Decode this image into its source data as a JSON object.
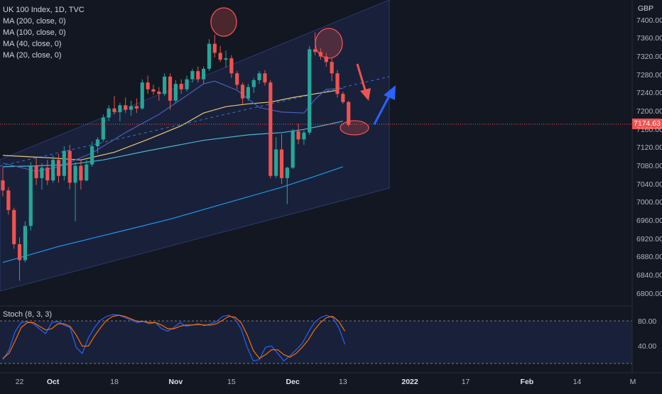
{
  "chart_data": [
    {
      "type": "candlestick",
      "instrument": "UK 100 Index, 1D, TVC",
      "currency": "GBP",
      "last_price": "7174.63",
      "y_ticks": [
        "7400.00",
        "7360.00",
        "7320.00",
        "7280.00",
        "7240.00",
        "7200.00",
        "7160.00",
        "7120.00",
        "7080.00",
        "7040.00",
        "7000.00",
        "6960.00",
        "6920.00",
        "6880.00",
        "6840.00",
        "6800.00"
      ],
      "ylim": [
        6790,
        7418
      ],
      "x_ticks": [
        {
          "label": "22",
          "index": 3
        },
        {
          "label": "Oct",
          "index": 9,
          "bold": true
        },
        {
          "label": "18",
          "index": 20
        },
        {
          "label": "Nov",
          "index": 31,
          "bold": true
        },
        {
          "label": "15",
          "index": 41
        },
        {
          "label": "Dec",
          "index": 52,
          "bold": true
        },
        {
          "label": "13",
          "index": 61
        },
        {
          "label": "2022",
          "index": 73,
          "bold": true
        },
        {
          "label": "17",
          "index": 83
        },
        {
          "label": "Feb",
          "index": 94,
          "bold": true
        },
        {
          "label": "14",
          "index": 103
        },
        {
          "label": "M",
          "index": 113
        }
      ],
      "candles": [
        [
          7050,
          7080,
          7015,
          7028
        ],
        [
          7028,
          7035,
          6975,
          6985
        ],
        [
          6985,
          6990,
          6900,
          6910
        ],
        [
          6910,
          6925,
          6830,
          6875
        ],
        [
          6875,
          6960,
          6870,
          6950
        ],
        [
          6950,
          7090,
          6940,
          7082
        ],
        [
          7082,
          7100,
          7040,
          7055
        ],
        [
          7055,
          7088,
          7030,
          7078
        ],
        [
          7078,
          7095,
          7040,
          7050
        ],
        [
          7050,
          7105,
          7045,
          7095
        ],
        [
          7095,
          7108,
          7045,
          7060
        ],
        [
          7060,
          7125,
          7050,
          7115
        ],
        [
          7115,
          7128,
          7030,
          7045
        ],
        [
          7045,
          7090,
          6960,
          7082
        ],
        [
          7082,
          7095,
          7030,
          7050
        ],
        [
          7050,
          7095,
          7048,
          7085
        ],
        [
          7085,
          7135,
          7080,
          7125
        ],
        [
          7125,
          7145,
          7110,
          7140
        ],
        [
          7140,
          7195,
          7135,
          7188
        ],
        [
          7188,
          7215,
          7180,
          7208
        ],
        [
          7208,
          7235,
          7195,
          7200
        ],
        [
          7200,
          7220,
          7180,
          7215
        ],
        [
          7215,
          7232,
          7198,
          7205
        ],
        [
          7205,
          7225,
          7192,
          7213
        ],
        [
          7213,
          7230,
          7198,
          7208
        ],
        [
          7208,
          7272,
          7205,
          7265
        ],
        [
          7265,
          7280,
          7240,
          7250
        ],
        [
          7250,
          7260,
          7238,
          7245
        ],
        [
          7245,
          7255,
          7225,
          7240
        ],
        [
          7240,
          7285,
          7235,
          7278
        ],
        [
          7278,
          7285,
          7205,
          7225
        ],
        [
          7225,
          7270,
          7220,
          7262
        ],
        [
          7262,
          7272,
          7240,
          7250
        ],
        [
          7250,
          7280,
          7245,
          7272
        ],
        [
          7272,
          7295,
          7265,
          7290
        ],
        [
          7290,
          7300,
          7265,
          7272
        ],
        [
          7272,
          7300,
          7262,
          7295
        ],
        [
          7295,
          7360,
          7290,
          7350
        ],
        [
          7350,
          7370,
          7320,
          7330
        ],
        [
          7330,
          7345,
          7310,
          7315
        ],
        [
          7315,
          7335,
          7298,
          7318
        ],
        [
          7318,
          7325,
          7275,
          7285
        ],
        [
          7285,
          7290,
          7250,
          7260
        ],
        [
          7260,
          7265,
          7218,
          7230
        ],
        [
          7230,
          7262,
          7225,
          7255
        ],
        [
          7255,
          7275,
          7242,
          7270
        ],
        [
          7270,
          7290,
          7262,
          7285
        ],
        [
          7285,
          7292,
          7258,
          7265
        ],
        [
          7265,
          7270,
          7055,
          7060
        ],
        [
          7060,
          7145,
          7055,
          7118
        ],
        [
          7118,
          7152,
          7042,
          7055
        ],
        [
          7055,
          7080,
          6998,
          7078
        ],
        [
          7078,
          7163,
          7075,
          7158
        ],
        [
          7158,
          7175,
          7130,
          7140
        ],
        [
          7140,
          7160,
          7128,
          7155
        ],
        [
          7155,
          7345,
          7150,
          7338
        ],
        [
          7338,
          7375,
          7325,
          7332
        ],
        [
          7332,
          7340,
          7315,
          7322
        ],
        [
          7322,
          7330,
          7300,
          7310
        ],
        [
          7310,
          7320,
          7268,
          7285
        ],
        [
          7285,
          7292,
          7232,
          7240
        ],
        [
          7240,
          7245,
          7218,
          7222
        ],
        [
          7222,
          7225,
          7168,
          7172
        ]
      ],
      "ma_legend": [
        "MA (200, close, 0)",
        "MA (100, close, 0)",
        "MA (40, close, 0)",
        "MA (20, close, 0)"
      ],
      "ma200": [
        [
          0,
          6870
        ],
        [
          10,
          6905
        ],
        [
          20,
          6935
        ],
        [
          30,
          6965
        ],
        [
          40,
          7000
        ],
        [
          50,
          7035
        ],
        [
          55,
          7055
        ],
        [
          61,
          7080
        ]
      ],
      "ma100": [
        [
          0,
          7080
        ],
        [
          6,
          7082
        ],
        [
          12,
          7085
        ],
        [
          18,
          7095
        ],
        [
          26,
          7115
        ],
        [
          36,
          7138
        ],
        [
          44,
          7150
        ],
        [
          50,
          7155
        ],
        [
          54,
          7162
        ],
        [
          58,
          7172
        ],
        [
          61,
          7180
        ]
      ],
      "ma40": [
        [
          0,
          7105
        ],
        [
          8,
          7100
        ],
        [
          14,
          7095
        ],
        [
          20,
          7112
        ],
        [
          26,
          7140
        ],
        [
          32,
          7170
        ],
        [
          36,
          7198
        ],
        [
          40,
          7212
        ],
        [
          44,
          7218
        ],
        [
          48,
          7222
        ],
        [
          52,
          7232
        ],
        [
          56,
          7240
        ],
        [
          60,
          7248
        ]
      ],
      "ma20": [
        [
          0,
          7088
        ],
        [
          6,
          7070
        ],
        [
          10,
          7080
        ],
        [
          16,
          7110
        ],
        [
          22,
          7155
        ],
        [
          28,
          7195
        ],
        [
          32,
          7228
        ],
        [
          36,
          7262
        ],
        [
          38,
          7268
        ],
        [
          42,
          7248
        ],
        [
          46,
          7210
        ],
        [
          50,
          7200
        ],
        [
          54,
          7198
        ],
        [
          56,
          7228
        ],
        [
          58,
          7250
        ],
        [
          61,
          7252
        ]
      ],
      "stoch": {
        "label": "Stoch (8, 3, 3)",
        "y_ticks": [
          "80.00",
          "40.00"
        ],
        "upper": 80,
        "lower": 20,
        "k": [
          20,
          35,
          65,
          80,
          82,
          78,
          70,
          62,
          80,
          82,
          76,
          72,
          40,
          30,
          55,
          72,
          84,
          90,
          93,
          92,
          88,
          84,
          80,
          82,
          78,
          80,
          70,
          66,
          72,
          80,
          74,
          76,
          78,
          75,
          78,
          82,
          90,
          92,
          86,
          70,
          40,
          18,
          20,
          40,
          42,
          30,
          18,
          26,
          36,
          46,
          64,
          80,
          88,
          92,
          88,
          72,
          45
        ],
        "d": [
          22,
          30,
          50,
          72,
          80,
          80,
          74,
          68,
          70,
          78,
          78,
          74,
          60,
          42,
          42,
          58,
          72,
          84,
          90,
          92,
          90,
          86,
          82,
          82,
          80,
          80,
          76,
          70,
          70,
          74,
          76,
          76,
          77,
          76,
          76,
          78,
          84,
          90,
          89,
          80,
          60,
          35,
          22,
          28,
          36,
          36,
          28,
          24,
          30,
          40,
          52,
          68,
          80,
          88,
          90,
          82,
          66
        ]
      }
    }
  ]
}
